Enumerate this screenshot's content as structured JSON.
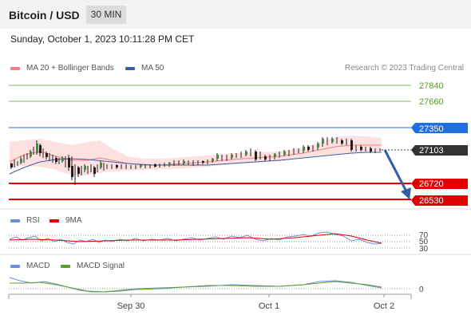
{
  "header": {
    "title": "Bitcoin / USD",
    "timeframe": "30 MIN"
  },
  "datetime": "Sunday, October 1, 2023 10:11:28 PM CET",
  "legend": {
    "ma20_label": "MA 20 + Bollinger Bands",
    "ma50_label": "MA 50",
    "ma20_color": "#f08080",
    "ma50_color": "#3a5fa0"
  },
  "copyright": "Research © 2023 Trading Central",
  "levels": {
    "r2": "27840",
    "r1": "27660",
    "pivot": "27350",
    "last": "27103",
    "s1": "26720",
    "s2": "26530"
  },
  "colors": {
    "pivot": "#1f6fe0",
    "last": "#333333",
    "support": "#e00000",
    "resistance_line": "#7bbd5a",
    "arrow": "#2e5fa8"
  },
  "rsi": {
    "label": "RSI",
    "ma_label": "9MA",
    "levels": [
      "70",
      "50",
      "30"
    ]
  },
  "macd": {
    "label": "MACD",
    "signal_label": "MACD Signal",
    "zero_label": "0"
  },
  "xaxis": {
    "ticks": [
      "Sep 30",
      "Oct 1",
      "Oct 2"
    ]
  }
}
